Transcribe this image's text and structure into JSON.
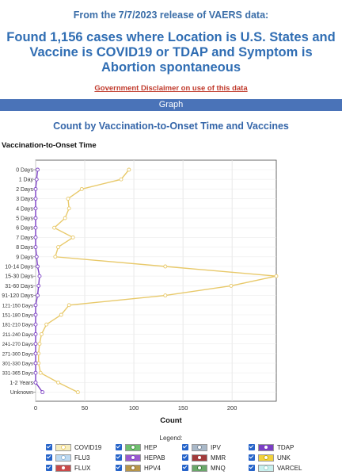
{
  "header": {
    "release": "From the 7/7/2023 release of VAERS data:",
    "headline": "Found 1,156 cases where Location is U.S. States and Vaccine is COVID19 or TDAP and Symptom is Abortion spontaneous",
    "disclaimer": "Government Disclaimer on use of this data",
    "graph_bar": "Graph"
  },
  "chart_data": {
    "type": "line",
    "orientation": "horizontal",
    "title": "Count by Vaccination-to-Onset Time and Vaccines",
    "ylabel": "Vaccination-to-Onset Time",
    "xlabel": "Count",
    "xlim": [
      0,
      245
    ],
    "xticks": [
      0,
      50,
      100,
      150,
      200
    ],
    "grid": true,
    "categories": [
      "0 Days",
      "1 Day",
      "2 Days",
      "3 Days",
      "4 Days",
      "5 Days",
      "6 Days",
      "7 Days",
      "8 Days",
      "9 Days",
      "10-14 Days",
      "15-30 Days",
      "31-60 Days",
      "91-120 Days",
      "121-150 Days",
      "151-180 Days",
      "181-210 Days",
      "211-240 Days",
      "241-270 Days",
      "271-300 Days",
      "301-330 Days",
      "331-365 Days",
      "1-2 Years",
      "Unknown"
    ],
    "series": [
      {
        "name": "COVID19",
        "color": "#e8c96a",
        "values": [
          95,
          87,
          47,
          33,
          34,
          30,
          19,
          38,
          23,
          20,
          132,
          245,
          199,
          132,
          34,
          26,
          11,
          6,
          4,
          3,
          3,
          5,
          23,
          43
        ]
      },
      {
        "name": "TDAP",
        "color": "#7b3fc4",
        "values": [
          2,
          1,
          0,
          0,
          0,
          0,
          0,
          0,
          0,
          1,
          2,
          4,
          3,
          2,
          0,
          0,
          0,
          0,
          0,
          0,
          0,
          0,
          0,
          7
        ]
      }
    ],
    "legend_title": "Legend:",
    "legend_position": "bottom",
    "legend": [
      {
        "name": "COVID19",
        "color": "#f7eebe",
        "marker": "#e8c96a"
      },
      {
        "name": "HEP",
        "color": "#6fbf6f",
        "marker": "#3a8a3a"
      },
      {
        "name": "IPV",
        "color": "#a9b8c8",
        "marker": "#7a8a9a"
      },
      {
        "name": "TDAP",
        "color": "#7b3fc4",
        "marker": "#7b3fc4"
      },
      {
        "name": "FLU3",
        "color": "#bcd9f2",
        "marker": "#8fb4d6"
      },
      {
        "name": "HEPAB",
        "color": "#9b59d0",
        "marker": "#7b3fc4"
      },
      {
        "name": "MMR",
        "color": "#a23b3b",
        "marker": "#a23b3b"
      },
      {
        "name": "UNK",
        "color": "#f2d23c",
        "marker": "#c9a800"
      },
      {
        "name": "FLUX",
        "color": "#c94a4a",
        "marker": "#c94a4a"
      },
      {
        "name": "HPV4",
        "color": "#b8964a",
        "marker": "#8a6a2a"
      },
      {
        "name": "MNQ",
        "color": "#6aa86a",
        "marker": "#3a7a3a"
      },
      {
        "name": "VARCEL",
        "color": "#c8f0ee",
        "marker": "#9ad0cc"
      }
    ]
  }
}
